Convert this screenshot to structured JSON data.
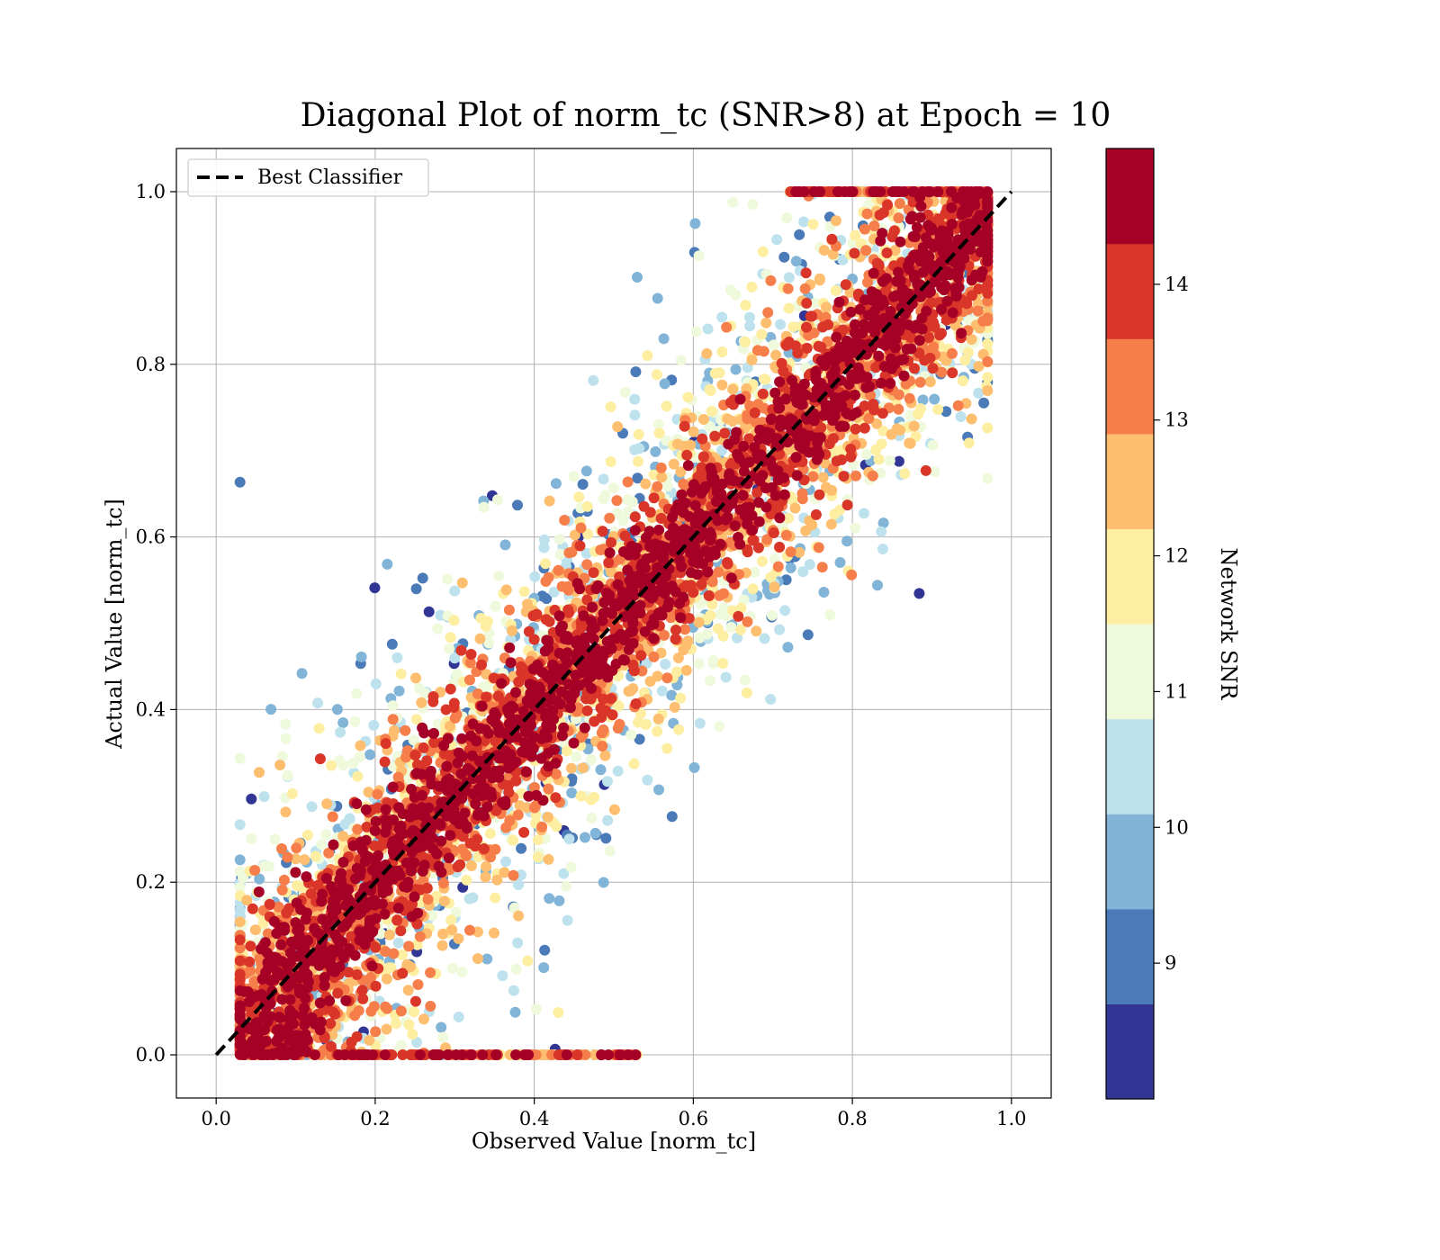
{
  "chart_data": {
    "type": "scatter",
    "title": "Diagonal Plot of norm_tc (SNR>8) at Epoch = 10",
    "xlabel": "Observed Value [norm_tc]",
    "ylabel": "Actual Value [norm_tc]",
    "xlim": [
      -0.05,
      1.05
    ],
    "ylim": [
      -0.05,
      1.05
    ],
    "x_ticks": [
      "0.0",
      "0.2",
      "0.4",
      "0.6",
      "0.8",
      "1.0"
    ],
    "y_ticks": [
      "0.0",
      "0.2",
      "0.4",
      "0.6",
      "0.8",
      "1.0"
    ],
    "x_tick_values": [
      0.0,
      0.2,
      0.4,
      0.6,
      0.8,
      1.0
    ],
    "y_tick_values": [
      0.0,
      0.2,
      0.4,
      0.6,
      0.8,
      1.0
    ],
    "grid": true,
    "legend": {
      "placement": "upper-left",
      "entries": [
        "Best Classifier"
      ]
    },
    "reference_line": {
      "name": "Best Classifier",
      "x": [
        0.0,
        1.0
      ],
      "y": [
        0.0,
        1.0
      ],
      "style": "dashed",
      "color": "#000000"
    },
    "colorbar": {
      "label": "Network SNR",
      "range": [
        8.0,
        15.0
      ],
      "tick_labels": [
        "9",
        "10",
        "11",
        "12",
        "13",
        "14"
      ],
      "tick_values": [
        9,
        10,
        11,
        12,
        13,
        14
      ],
      "colors": [
        "#313695",
        "#4a7ab7",
        "#81b4d6",
        "#bde2ee",
        "#eff9db",
        "#feeea1",
        "#fdbf6f",
        "#f67e4b",
        "#d93529",
        "#a50026"
      ]
    },
    "points_summary": {
      "count_estimate": 20000,
      "relationship": "points cluster along the diagonal y = x; high-SNR points (dark red) tightly near the diagonal, low-SNR points (blue) spread further away",
      "x_range": [
        0.03,
        0.97
      ],
      "y_range": [
        0.0,
        1.0
      ]
    }
  }
}
